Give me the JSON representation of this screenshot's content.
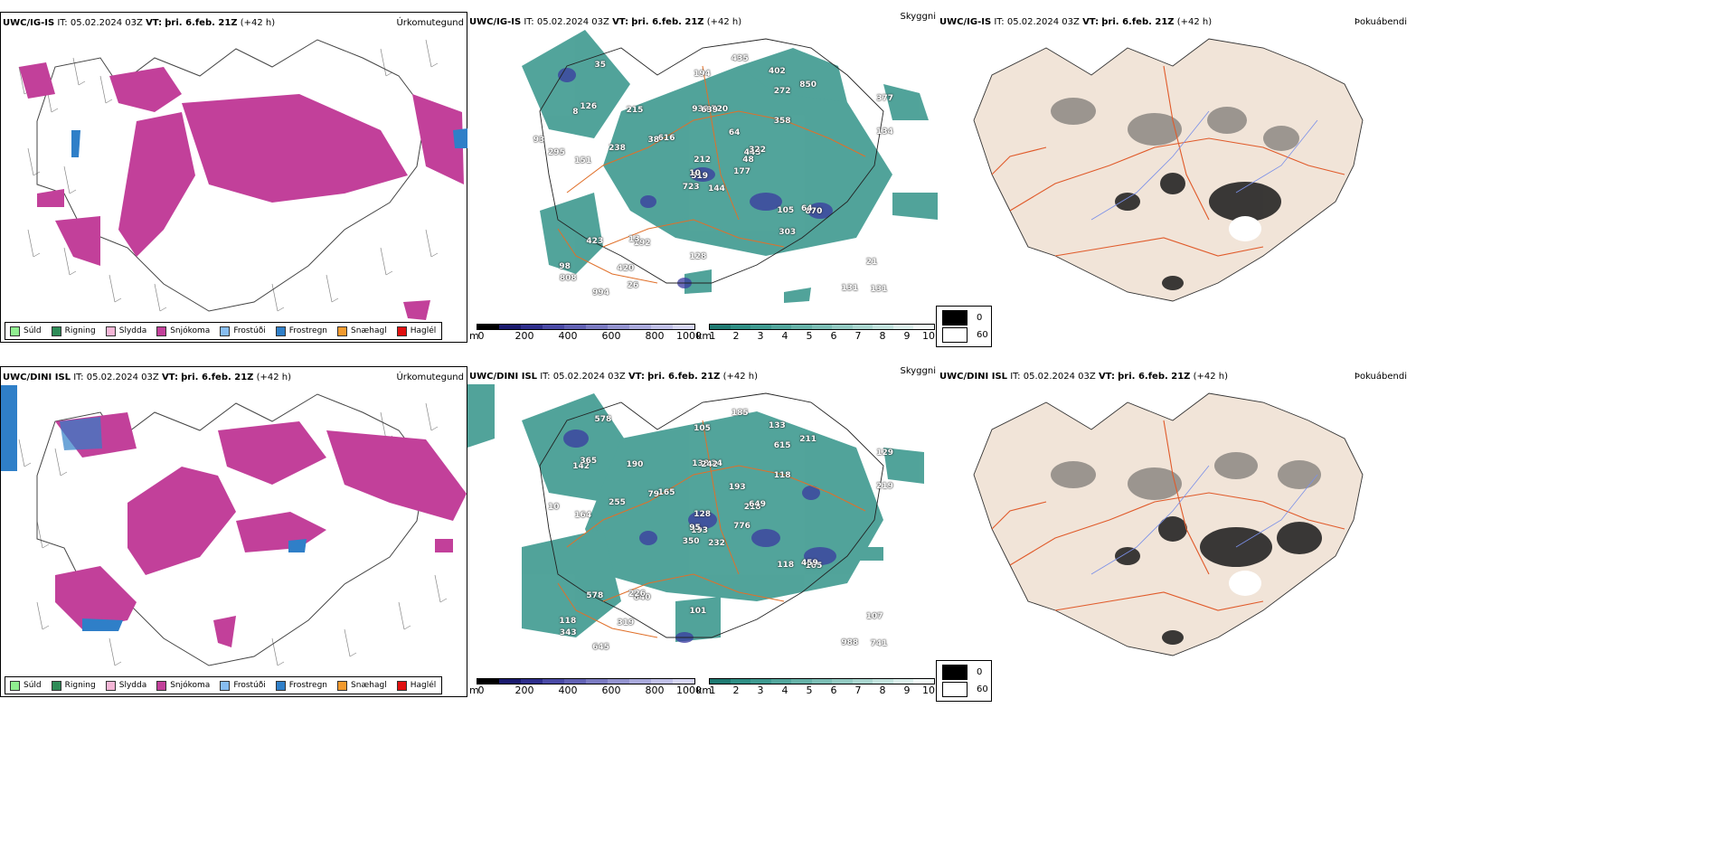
{
  "rows": [
    {
      "model": "UWC/IG-IS",
      "it_label": "IT:",
      "it_value": "05.02.2024 03Z",
      "vt_label": "VT:",
      "vt_value": "þri. 6.feb. 21Z",
      "lead": "(+42 h)"
    },
    {
      "model": "UWC/DINI ISL",
      "it_label": "IT:",
      "it_value": "05.02.2024 03Z",
      "vt_label": "VT:",
      "vt_value": "þri. 6.feb. 21Z",
      "lead": "(+42 h)"
    }
  ],
  "panel_titles": {
    "precip": "Úrkomutegund",
    "visibility": "Skyggni",
    "fog": "Þokuábendi"
  },
  "precip_legend": [
    {
      "label": "Súld",
      "color": "#90ee90"
    },
    {
      "label": "Rigning",
      "color": "#2e8b57"
    },
    {
      "label": "Slydda",
      "color": "#f4b6d6"
    },
    {
      "label": "Snjókoma",
      "color": "#c2409a"
    },
    {
      "label": "Frostúði",
      "color": "#87bdf0"
    },
    {
      "label": "Frostregn",
      "color": "#2f7fc8"
    },
    {
      "label": "Snæhagl",
      "color": "#f29a2e"
    },
    {
      "label": "Haglél",
      "color": "#e01010"
    }
  ],
  "colors": {
    "snow": "#c2409a",
    "freezing_rain": "#2f7fc8",
    "teal": "#2f8f85",
    "land_fog": "#f1e4d8",
    "roads": "#e0702a",
    "rivers": "#7a8fe8"
  },
  "height_bar": {
    "unit": "m",
    "ticks": [
      "0",
      "200",
      "400",
      "600",
      "800",
      "1000"
    ],
    "colors": [
      "#000000",
      "#1a1a6e",
      "#2e2e8c",
      "#4a4aa6",
      "#6262b4",
      "#7b7bc2",
      "#9393cf",
      "#aaaadc",
      "#c0c0e8",
      "#d6d6f2"
    ]
  },
  "vis_bar": {
    "unit": "km",
    "ticks": [
      "1",
      "2",
      "3",
      "4",
      "5",
      "6",
      "7",
      "8",
      "9",
      "10"
    ],
    "colors": [
      "#1f7a72",
      "#2f8f85",
      "#3f9a90",
      "#52a69c",
      "#66b2a8",
      "#7cbeb5",
      "#93cac2",
      "#aad6cf",
      "#c2e2dd",
      "#dbeeeb",
      "#f3f9f8"
    ]
  },
  "fog_legend": {
    "low": "0",
    "high": "60",
    "low_color": "#000000",
    "high_color": "#ffffff"
  },
  "vis_labels_top": [
    "144",
    "8",
    "519",
    "98",
    "443",
    "192",
    "402",
    "720",
    "272",
    "177",
    "35",
    "131",
    "151",
    "377",
    "723",
    "358",
    "994",
    "939",
    "64",
    "423",
    "616",
    "808",
    "420",
    "639",
    "322",
    "870",
    "126",
    "194",
    "295",
    "105",
    "134",
    "10",
    "128",
    "212",
    "215",
    "850",
    "13",
    "131",
    "21",
    "64",
    "435",
    "38",
    "238",
    "303",
    "26",
    "93",
    "48"
  ],
  "vis_labels_bottom": [
    "232",
    "142",
    "193",
    "118",
    "218",
    "840",
    "133",
    "24",
    "615",
    "776",
    "578",
    "741",
    "164",
    "129",
    "350",
    "118",
    "645",
    "138",
    "193",
    "578",
    "165",
    "343",
    "319",
    "242",
    "649",
    "105",
    "365",
    "105",
    "10",
    "118",
    "219",
    "95",
    "101",
    "128",
    "190",
    "211",
    "226",
    "988",
    "107",
    "459",
    "185",
    "79",
    "255"
  ]
}
